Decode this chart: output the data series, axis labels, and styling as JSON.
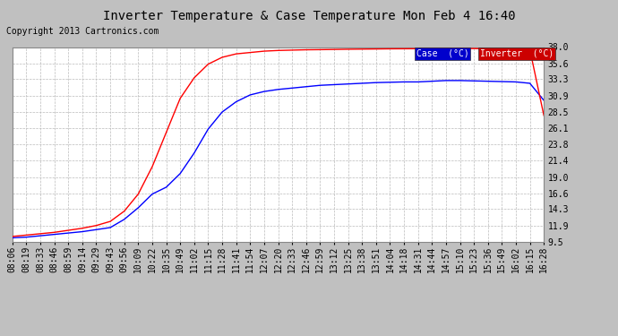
{
  "title": "Inverter Temperature & Case Temperature Mon Feb 4 16:40",
  "copyright": "Copyright 2013 Cartronics.com",
  "figure_bg": "#c0c0c0",
  "plot_bg": "#ffffff",
  "grid_color": "#bbbbbb",
  "ylim": [
    9.5,
    38.0
  ],
  "yticks": [
    9.5,
    11.9,
    14.3,
    16.6,
    19.0,
    21.4,
    23.8,
    26.1,
    28.5,
    30.9,
    33.3,
    35.6,
    38.0
  ],
  "case_color": "#0000ff",
  "inverter_color": "#ff0000",
  "legend_case_bg": "#0000cc",
  "legend_inverter_bg": "#cc0000",
  "case_label": "Case  (°C)",
  "inverter_label": "Inverter  (°C)",
  "x_labels": [
    "08:06",
    "08:19",
    "08:33",
    "08:46",
    "08:59",
    "09:14",
    "09:29",
    "09:43",
    "09:56",
    "10:09",
    "10:22",
    "10:35",
    "10:49",
    "11:02",
    "11:15",
    "11:28",
    "11:41",
    "11:54",
    "12:07",
    "12:20",
    "12:33",
    "12:46",
    "12:59",
    "13:12",
    "13:25",
    "13:38",
    "13:51",
    "14:04",
    "14:18",
    "14:31",
    "14:44",
    "14:57",
    "15:10",
    "15:23",
    "15:36",
    "15:49",
    "16:02",
    "16:15",
    "16:28"
  ],
  "case_data": [
    10.1,
    10.2,
    10.4,
    10.6,
    10.8,
    11.0,
    11.3,
    11.6,
    12.8,
    14.5,
    16.5,
    17.5,
    19.5,
    22.5,
    26.0,
    28.5,
    30.0,
    31.0,
    31.5,
    31.8,
    32.0,
    32.2,
    32.4,
    32.5,
    32.6,
    32.7,
    32.8,
    32.85,
    32.9,
    32.9,
    33.0,
    33.1,
    33.1,
    33.05,
    33.0,
    32.95,
    32.9,
    32.7,
    30.2
  ],
  "inverter_data": [
    10.3,
    10.5,
    10.7,
    10.9,
    11.2,
    11.5,
    11.9,
    12.5,
    14.0,
    16.5,
    20.5,
    25.5,
    30.5,
    33.5,
    35.5,
    36.5,
    37.0,
    37.2,
    37.4,
    37.5,
    37.55,
    37.6,
    37.62,
    37.65,
    37.68,
    37.7,
    37.72,
    37.74,
    37.75,
    37.76,
    37.77,
    37.78,
    37.8,
    37.78,
    37.75,
    37.72,
    37.7,
    37.65,
    28.0
  ],
  "title_fontsize": 10,
  "copyright_fontsize": 7,
  "tick_fontsize": 7,
  "ylabel_fontsize": 7
}
